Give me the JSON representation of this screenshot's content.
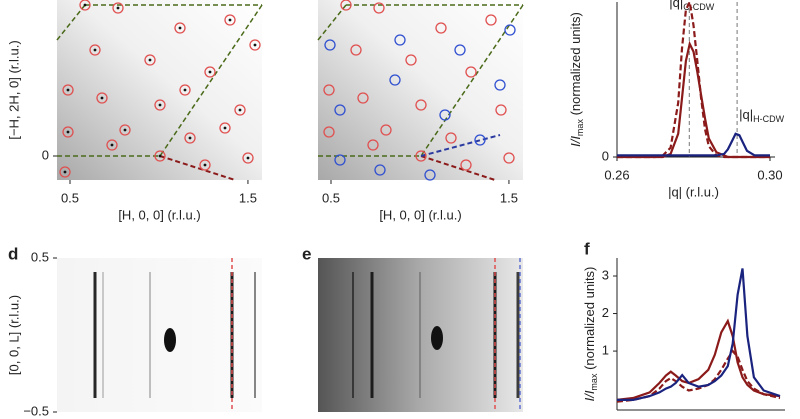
{
  "chart_data": [
    {
      "type": "image",
      "ylabel": "[−H, 2H, 0] (r.l.u.)",
      "xlabel": "[H, 0, 0] (r.l.u.)",
      "xlim": [
        0.427,
        1.579
      ],
      "xticks": [
        0.5,
        1.5
      ],
      "ylim": [
        -0.12,
        0.78
      ],
      "yticks": [
        0
      ]
    },
    {
      "type": "image",
      "xlabel": "[H, 0, 0] (r.l.u.)",
      "xlim": [
        0.427,
        1.579
      ],
      "xticks": [
        0.5,
        1.5
      ]
    },
    {
      "type": "line",
      "ylabel": {
        "main": "I/I",
        "sub": "max",
        "rest": " (normalized units)"
      },
      "xlabel": "|q| (r.l.u.)",
      "xlim": [
        0.26,
        0.3
      ],
      "xticks": [
        0.26,
        {
          "value": 0.3,
          "label": "0.30"
        }
      ],
      "ylim": [
        0,
        1.0
      ],
      "yticks": [
        0
      ],
      "annotations": [
        {
          "text": "|q|",
          "sub": "C-CDW",
          "x": 0.2789
        },
        {
          "text": "|q|",
          "sub": "H-CDW",
          "x": 0.2914
        }
      ],
      "x": [
        0.26,
        0.27,
        0.272,
        0.274,
        0.276,
        0.277,
        0.278,
        0.279,
        0.28,
        0.281,
        0.282,
        0.283,
        0.284,
        0.286,
        0.288,
        0.289,
        0.29,
        0.291,
        0.292,
        0.293,
        0.294,
        0.296,
        0.3
      ],
      "series": [
        {
          "color": "#8b1a1a",
          "dash": true,
          "values": [
            0,
            0,
            0.01,
            0.06,
            0.35,
            0.7,
            0.95,
            1.0,
            0.85,
            0.62,
            0.38,
            0.18,
            0.07,
            0.01,
            0,
            0,
            0,
            0,
            0,
            0,
            0,
            0,
            0
          ]
        },
        {
          "color": "#8b1a1a",
          "dash": false,
          "values": [
            0,
            0,
            0,
            0.02,
            0.15,
            0.38,
            0.62,
            0.73,
            0.68,
            0.55,
            0.4,
            0.25,
            0.12,
            0.03,
            0.01,
            0,
            0,
            0,
            0,
            0,
            0,
            0,
            0
          ]
        },
        {
          "color": "#1a237e",
          "dash": false,
          "values": [
            0.01,
            0.01,
            0.01,
            0.01,
            0.01,
            0.01,
            0.01,
            0.01,
            0.01,
            0.01,
            0.01,
            0.01,
            0.01,
            0.01,
            0.02,
            0.05,
            0.1,
            0.15,
            0.14,
            0.09,
            0.04,
            0.01,
            0.01
          ]
        }
      ]
    },
    {
      "type": "image",
      "panel": "d",
      "ylabel": "[0, 0, L] (r.l.u.)",
      "ylim": [
        -0.5,
        0.5
      ],
      "yticks": [
        0.5,
        {
          "value": -0.5,
          "label": "−0.5"
        }
      ]
    },
    {
      "type": "image",
      "panel": "e"
    },
    {
      "type": "line",
      "panel": "f",
      "ylabel": {
        "main": "I/I",
        "sub": "max",
        "rest": " (normalized units)"
      },
      "xlim": [
        0,
        1
      ],
      "ylim": [
        -0.57,
        3.48
      ],
      "yticks": [
        1,
        2,
        3
      ],
      "x": [
        0,
        0.1,
        0.2,
        0.26,
        0.3,
        0.33,
        0.36,
        0.4,
        0.44,
        0.5,
        0.56,
        0.6,
        0.64,
        0.68,
        0.71,
        0.74,
        0.77,
        0.8,
        0.84,
        0.9,
        1.0
      ],
      "series": [
        {
          "color": "#8b1a1a",
          "dash": false,
          "values": [
            -0.3,
            -0.25,
            -0.1,
            0.15,
            0.35,
            0.45,
            0.35,
            0.2,
            0.15,
            0.25,
            0.5,
            0.9,
            1.5,
            1.8,
            1.4,
            0.7,
            0.3,
            0.1,
            -0.05,
            -0.15,
            -0.2
          ]
        },
        {
          "color": "#8b1a1a",
          "dash": true,
          "values": [
            -0.35,
            -0.3,
            -0.2,
            0.0,
            0.2,
            0.28,
            0.2,
            0.05,
            -0.05,
            0.0,
            0.1,
            0.25,
            0.5,
            0.8,
            1.0,
            0.85,
            0.5,
            0.2,
            0.0,
            -0.15,
            -0.25
          ]
        },
        {
          "color": "#1a237e",
          "dash": false,
          "values": [
            -0.3,
            -0.3,
            -0.2,
            -0.1,
            0.0,
            0.05,
            0.15,
            0.36,
            0.15,
            0.05,
            0.1,
            0.2,
            0.35,
            0.6,
            1.2,
            2.5,
            3.2,
            1.4,
            0.3,
            -0.05,
            -0.2
          ]
        }
      ]
    }
  ]
}
